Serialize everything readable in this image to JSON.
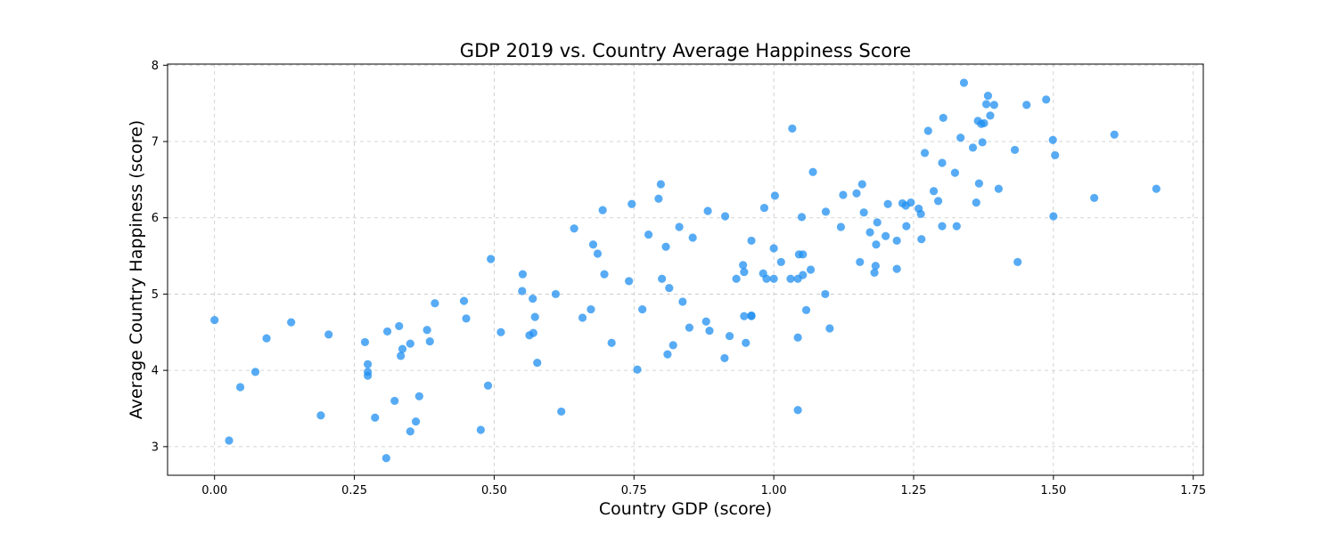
{
  "chart_data": {
    "type": "scatter",
    "title": "GDP 2019 vs. Country Average Happiness Score",
    "xlabel": "Country GDP (score)",
    "ylabel": "Average Country Happiness (score)",
    "xlim": [
      -0.084,
      1.768
    ],
    "ylim": [
      2.625,
      8.015
    ],
    "xticks": [
      0.0,
      0.25,
      0.5,
      0.75,
      1.0,
      1.25,
      1.5,
      1.75
    ],
    "xtick_labels": [
      "0.00",
      "0.25",
      "0.50",
      "0.75",
      "1.00",
      "1.25",
      "1.50",
      "1.75"
    ],
    "yticks": [
      3,
      4,
      5,
      6,
      7,
      8
    ],
    "ytick_labels": [
      "3",
      "4",
      "5",
      "6",
      "7",
      "8"
    ],
    "grid": true,
    "color": "#1f8ff0",
    "series": [
      {
        "points": [
          [
            0.0,
            4.66
          ],
          [
            0.026,
            3.08
          ],
          [
            0.046,
            3.78
          ],
          [
            0.073,
            3.98
          ],
          [
            0.093,
            4.42
          ],
          [
            0.137,
            4.63
          ],
          [
            0.19,
            3.41
          ],
          [
            0.204,
            4.47
          ],
          [
            0.269,
            4.37
          ],
          [
            0.274,
            4.08
          ],
          [
            0.274,
            3.98
          ],
          [
            0.274,
            3.93
          ],
          [
            0.287,
            3.38
          ],
          [
            0.307,
            2.85
          ],
          [
            0.309,
            4.51
          ],
          [
            0.322,
            3.6
          ],
          [
            0.33,
            4.58
          ],
          [
            0.333,
            4.19
          ],
          [
            0.336,
            4.28
          ],
          [
            0.35,
            3.2
          ],
          [
            0.35,
            4.35
          ],
          [
            0.36,
            3.33
          ],
          [
            0.366,
            3.66
          ],
          [
            0.38,
            4.53
          ],
          [
            0.385,
            4.38
          ],
          [
            0.394,
            4.88
          ],
          [
            0.446,
            4.91
          ],
          [
            0.45,
            4.68
          ],
          [
            0.476,
            3.22
          ],
          [
            0.489,
            3.8
          ],
          [
            0.494,
            5.46
          ],
          [
            0.512,
            4.5
          ],
          [
            0.55,
            5.04
          ],
          [
            0.551,
            5.26
          ],
          [
            0.563,
            4.46
          ],
          [
            0.569,
            4.94
          ],
          [
            0.57,
            4.49
          ],
          [
            0.573,
            4.7
          ],
          [
            0.577,
            4.1
          ],
          [
            0.61,
            5.0
          ],
          [
            0.62,
            3.46
          ],
          [
            0.643,
            5.86
          ],
          [
            0.658,
            4.69
          ],
          [
            0.673,
            4.8
          ],
          [
            0.677,
            5.65
          ],
          [
            0.685,
            5.53
          ],
          [
            0.694,
            6.1
          ],
          [
            0.697,
            5.26
          ],
          [
            0.71,
            4.36
          ],
          [
            0.741,
            5.17
          ],
          [
            0.746,
            6.18
          ],
          [
            0.756,
            4.01
          ],
          [
            0.765,
            4.8
          ],
          [
            0.776,
            5.78
          ],
          [
            0.794,
            6.25
          ],
          [
            0.798,
            6.44
          ],
          [
            0.8,
            5.2
          ],
          [
            0.807,
            5.62
          ],
          [
            0.81,
            4.21
          ],
          [
            0.813,
            5.08
          ],
          [
            0.82,
            4.33
          ],
          [
            0.831,
            5.88
          ],
          [
            0.837,
            4.9
          ],
          [
            0.849,
            4.56
          ],
          [
            0.855,
            5.74
          ],
          [
            0.879,
            4.64
          ],
          [
            0.882,
            6.09
          ],
          [
            0.885,
            4.52
          ],
          [
            0.912,
            4.16
          ],
          [
            0.913,
            6.02
          ],
          [
            0.921,
            4.45
          ],
          [
            0.933,
            5.2
          ],
          [
            0.945,
            5.38
          ],
          [
            0.947,
            5.29
          ],
          [
            0.947,
            4.71
          ],
          [
            0.95,
            4.36
          ],
          [
            0.96,
            4.71
          ],
          [
            0.96,
            4.72
          ],
          [
            0.96,
            5.7
          ],
          [
            0.981,
            5.27
          ],
          [
            0.983,
            6.13
          ],
          [
            0.987,
            5.2
          ],
          [
            1.0,
            5.2
          ],
          [
            1.0,
            5.6
          ],
          [
            1.002,
            6.29
          ],
          [
            1.013,
            5.42
          ],
          [
            1.03,
            5.2
          ],
          [
            1.033,
            7.17
          ],
          [
            1.043,
            5.2
          ],
          [
            1.043,
            4.43
          ],
          [
            1.043,
            3.48
          ],
          [
            1.045,
            5.52
          ],
          [
            1.05,
            6.01
          ],
          [
            1.052,
            5.25
          ],
          [
            1.052,
            5.52
          ],
          [
            1.058,
            4.79
          ],
          [
            1.066,
            5.32
          ],
          [
            1.07,
            6.6
          ],
          [
            1.092,
            5.0
          ],
          [
            1.093,
            6.08
          ],
          [
            1.1,
            4.55
          ],
          [
            1.12,
            5.88
          ],
          [
            1.124,
            6.3
          ],
          [
            1.148,
            6.32
          ],
          [
            1.154,
            5.42
          ],
          [
            1.158,
            6.44
          ],
          [
            1.161,
            6.07
          ],
          [
            1.172,
            5.81
          ],
          [
            1.18,
            5.28
          ],
          [
            1.182,
            5.37
          ],
          [
            1.183,
            5.65
          ],
          [
            1.185,
            5.94
          ],
          [
            1.2,
            5.76
          ],
          [
            1.204,
            6.18
          ],
          [
            1.22,
            5.33
          ],
          [
            1.22,
            5.7
          ],
          [
            1.23,
            6.19
          ],
          [
            1.236,
            6.16
          ],
          [
            1.237,
            5.89
          ],
          [
            1.245,
            6.2
          ],
          [
            1.259,
            6.12
          ],
          [
            1.263,
            6.05
          ],
          [
            1.264,
            5.72
          ],
          [
            1.27,
            6.85
          ],
          [
            1.276,
            7.14
          ],
          [
            1.286,
            6.35
          ],
          [
            1.294,
            6.22
          ],
          [
            1.301,
            6.72
          ],
          [
            1.301,
            5.89
          ],
          [
            1.303,
            7.31
          ],
          [
            1.324,
            6.59
          ],
          [
            1.327,
            5.89
          ],
          [
            1.334,
            7.05
          ],
          [
            1.34,
            7.77
          ],
          [
            1.356,
            6.92
          ],
          [
            1.362,
            6.2
          ],
          [
            1.365,
            7.27
          ],
          [
            1.367,
            6.45
          ],
          [
            1.371,
            7.23
          ],
          [
            1.373,
            6.99
          ],
          [
            1.376,
            7.24
          ],
          [
            1.38,
            7.49
          ],
          [
            1.383,
            7.6
          ],
          [
            1.387,
            7.34
          ],
          [
            1.394,
            7.48
          ],
          [
            1.402,
            6.38
          ],
          [
            1.431,
            6.89
          ],
          [
            1.436,
            5.42
          ],
          [
            1.452,
            7.48
          ],
          [
            1.487,
            7.55
          ],
          [
            1.499,
            7.02
          ],
          [
            1.5,
            6.02
          ],
          [
            1.503,
            6.82
          ],
          [
            1.573,
            6.26
          ],
          [
            1.609,
            7.09
          ],
          [
            1.684,
            6.38
          ]
        ]
      }
    ]
  }
}
